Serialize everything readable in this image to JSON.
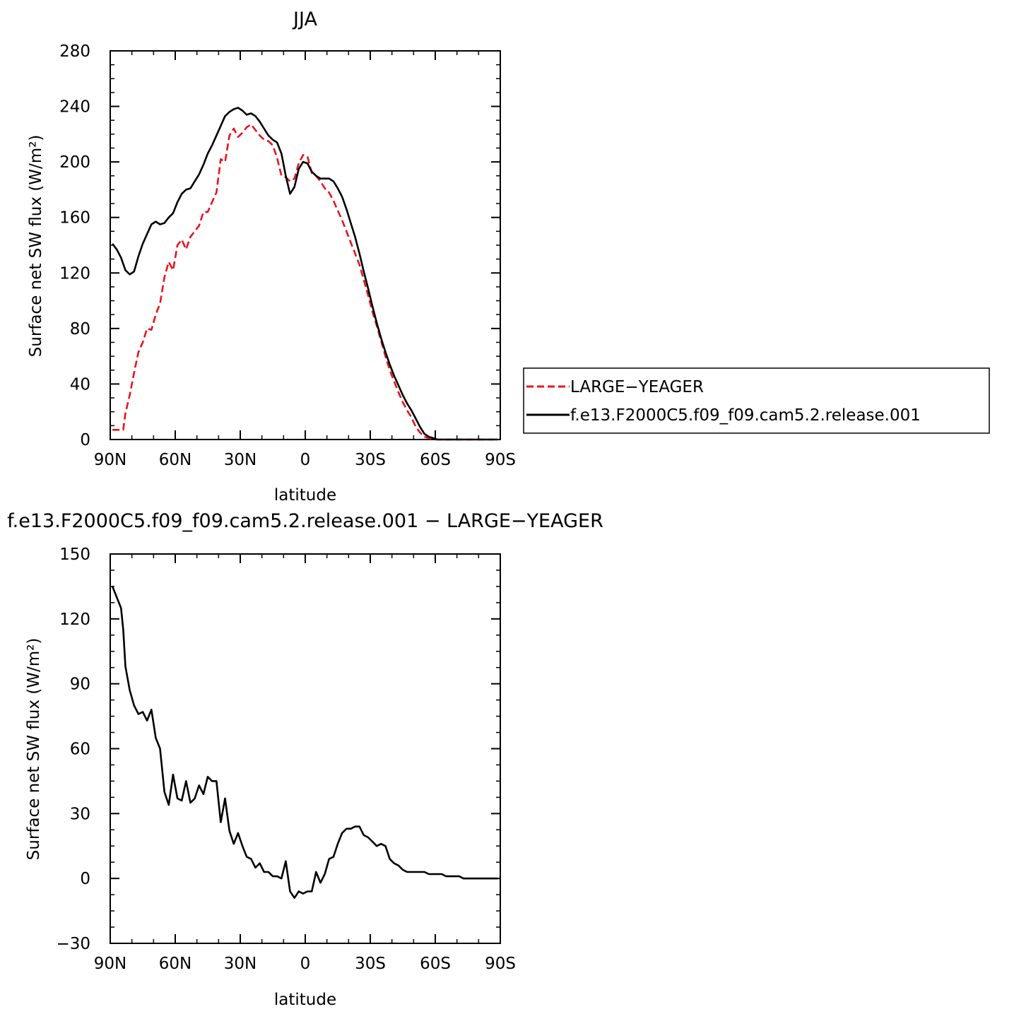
{
  "chart_data": [
    {
      "type": "line",
      "title": "JJA",
      "xlabel": "latitude",
      "ylabel": "Surface net SW flux (W/m²)",
      "xlim": [
        90,
        -90
      ],
      "ylim": [
        0,
        280
      ],
      "x_ticks": [
        90,
        60,
        30,
        0,
        -30,
        -60,
        -90
      ],
      "x_tick_labels": [
        "90N",
        "60N",
        "30N",
        "0",
        "30S",
        "60S",
        "90S"
      ],
      "y_ticks": [
        0,
        40,
        80,
        120,
        160,
        200,
        240,
        280
      ],
      "y_tick_labels": [
        "0",
        "40",
        "80",
        "120",
        "160",
        "200",
        "240",
        "280"
      ],
      "legend_position": "right",
      "series": [
        {
          "name": "LARGE−YEAGER",
          "color": "#e8141c",
          "dash": "dashed",
          "x": [
            89,
            86,
            84,
            83,
            81,
            79,
            77,
            75,
            73,
            71,
            69,
            67,
            65,
            63,
            61,
            59,
            57,
            55,
            53,
            51,
            49,
            47,
            45,
            43,
            41,
            39,
            37,
            35,
            33,
            31,
            29,
            27,
            25,
            23,
            21,
            19,
            17,
            15,
            13,
            11,
            9,
            7,
            5,
            3,
            1,
            -1,
            -3,
            -5,
            -7,
            -9,
            -11,
            -13,
            -15,
            -17,
            -19,
            -21,
            -23,
            -25,
            -27,
            -29,
            -31,
            -33,
            -35,
            -37,
            -39,
            -41,
            -43,
            -45,
            -47,
            -49,
            -51,
            -53,
            -55,
            -57,
            -59,
            -61,
            -63,
            -65,
            -67,
            -69,
            -71,
            -73,
            -75,
            -77,
            -79,
            -81,
            -83,
            -85,
            -87,
            -89
          ],
          "y": [
            7,
            7,
            7,
            19,
            32,
            48,
            63,
            70,
            80,
            79,
            90,
            98,
            117,
            128,
            122,
            140,
            144,
            137,
            146,
            150,
            154,
            164,
            164,
            171,
            178,
            202,
            200,
            219,
            224,
            218,
            221,
            225,
            227,
            223,
            219,
            216,
            215,
            212,
            203,
            190,
            189,
            186,
            188,
            199,
            205,
            204,
            192,
            190,
            186,
            181,
            178,
            172,
            165,
            158,
            150,
            142,
            134,
            126,
            115,
            104,
            92,
            82,
            71,
            60,
            50,
            42,
            34,
            27,
            21,
            16,
            9,
            5,
            2,
            1,
            0,
            0,
            0,
            0,
            0,
            0,
            0,
            0,
            0,
            0,
            0,
            0,
            0,
            0,
            0,
            0
          ]
        },
        {
          "name": "f.e13.F2000C5.f09_f09.cam5.2.release.001",
          "color": "#000000",
          "dash": "solid",
          "x": [
            89,
            87,
            85,
            83,
            81,
            79,
            77,
            75,
            73,
            71,
            69,
            67,
            65,
            63,
            61,
            59,
            57,
            55,
            53,
            51,
            49,
            47,
            45,
            43,
            41,
            39,
            37,
            35,
            33,
            31,
            29,
            27,
            25,
            23,
            21,
            19,
            17,
            15,
            13,
            11,
            9,
            7,
            5,
            3,
            1,
            -1,
            -3,
            -5,
            -7,
            -9,
            -11,
            -13,
            -15,
            -17,
            -19,
            -21,
            -23,
            -25,
            -27,
            -29,
            -31,
            -33,
            -35,
            -37,
            -39,
            -41,
            -43,
            -45,
            -47,
            -49,
            -51,
            -53,
            -55,
            -57,
            -59,
            -61,
            -63,
            -65,
            -67,
            -69,
            -71,
            -73,
            -75,
            -77,
            -79,
            -81,
            -83,
            -85,
            -87,
            -89
          ],
          "y": [
            141,
            137,
            131,
            122,
            119,
            121,
            132,
            141,
            148,
            155,
            157,
            155,
            156,
            160,
            163,
            171,
            177,
            180,
            181,
            186,
            191,
            198,
            206,
            212,
            219,
            226,
            233,
            236,
            238,
            239,
            237,
            234,
            235,
            233,
            229,
            224,
            219,
            216,
            214,
            206,
            190,
            177,
            182,
            195,
            200,
            199,
            193,
            190,
            188,
            188,
            188,
            186,
            181,
            175,
            166,
            156,
            146,
            134,
            121,
            109,
            96,
            84,
            73,
            63,
            54,
            46,
            39,
            32,
            26,
            21,
            15,
            9,
            4,
            2,
            1,
            0,
            0,
            0,
            0,
            0,
            0,
            0,
            0,
            0,
            0,
            0,
            0,
            0,
            0,
            0
          ]
        }
      ]
    },
    {
      "type": "line",
      "title": "f.e13.F2000C5.f09_f09.cam5.2.release.001 − LARGE−YEAGER",
      "xlabel": "latitude",
      "ylabel": "Surface net SW flux (W/m²)",
      "xlim": [
        90,
        -90
      ],
      "ylim": [
        -30,
        150
      ],
      "x_ticks": [
        90,
        60,
        30,
        0,
        -30,
        -60,
        -90
      ],
      "x_tick_labels": [
        "90N",
        "60N",
        "30N",
        "0",
        "30S",
        "60S",
        "90S"
      ],
      "y_ticks": [
        -30,
        0,
        30,
        60,
        90,
        120,
        150
      ],
      "y_tick_labels": [
        "−30",
        "0",
        "30",
        "60",
        "90",
        "120",
        "150"
      ],
      "series": [
        {
          "color": "#000000",
          "dash": "solid",
          "x": [
            89,
            87,
            85,
            84,
            83,
            81,
            79,
            77,
            75,
            73,
            71,
            69,
            67,
            65,
            63,
            61,
            59,
            57,
            55,
            53,
            51,
            49,
            47,
            45,
            43,
            41,
            39,
            37,
            35,
            33,
            31,
            29,
            27,
            25,
            23,
            21,
            19,
            17,
            15,
            13,
            11,
            9,
            7,
            5,
            3,
            1,
            -1,
            -3,
            -5,
            -7,
            -9,
            -11,
            -13,
            -15,
            -17,
            -19,
            -21,
            -23,
            -25,
            -27,
            -29,
            -31,
            -33,
            -35,
            -37,
            -39,
            -41,
            -43,
            -45,
            -47,
            -49,
            -51,
            -53,
            -55,
            -57,
            -59,
            -61,
            -63,
            -65,
            -67,
            -69,
            -71,
            -73,
            -75,
            -77,
            -79,
            -81,
            -83,
            -85,
            -87,
            -89
          ],
          "y": [
            135,
            130,
            125,
            115,
            98,
            87,
            80,
            76,
            77,
            73,
            78,
            65,
            60,
            40,
            34,
            48,
            37,
            36,
            45,
            35,
            37,
            43,
            39,
            47,
            45,
            45,
            26,
            37,
            22,
            16,
            21,
            15,
            10,
            9,
            5,
            7,
            3,
            3,
            1,
            1,
            0,
            8,
            -6,
            -9,
            -6,
            -7,
            -6,
            -6,
            3,
            -2,
            2,
            9,
            10,
            16,
            21,
            23,
            23,
            24,
            24,
            20,
            19,
            17,
            15,
            16,
            15,
            9,
            7,
            6,
            4,
            3,
            3,
            3,
            3,
            3,
            2,
            2,
            2,
            2,
            1,
            1,
            1,
            1,
            0,
            0,
            0,
            0,
            0,
            0,
            0,
            0,
            0
          ]
        }
      ]
    }
  ]
}
